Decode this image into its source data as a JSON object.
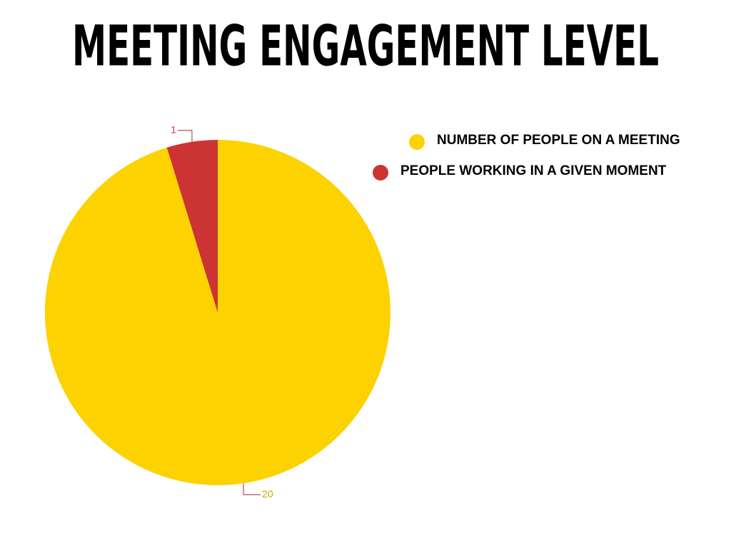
{
  "chart_data": {
    "type": "pie",
    "title": "MEETING ENGAGEMENT LEVEL",
    "categories": [
      "NUMBER OF PEOPLE ON A MEETING",
      "PEOPLE WORKING IN A GIVEN MOMENT"
    ],
    "values": [
      20,
      1
    ],
    "colors": [
      "#fcd200",
      "#cc3433"
    ],
    "legend": "top-right"
  }
}
